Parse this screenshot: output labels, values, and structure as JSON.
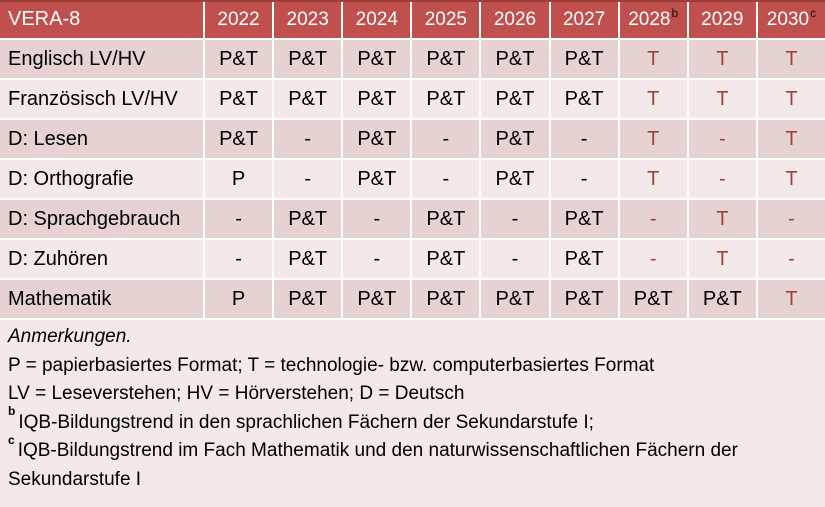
{
  "colors": {
    "header_bg": "#C0504D",
    "header_text": "#FFFFFF",
    "band_dark": "#E6D2D1",
    "band_light": "#F2E9E8",
    "red_text": "#A0413D",
    "dark_text": "#000000",
    "grid_line": "#FFFFFF",
    "top_border": "#9E3E3B"
  },
  "table": {
    "corner_label": "VERA-8",
    "years": [
      {
        "label": "2022",
        "sup": ""
      },
      {
        "label": "2023",
        "sup": ""
      },
      {
        "label": "2024",
        "sup": ""
      },
      {
        "label": "2025",
        "sup": ""
      },
      {
        "label": "2026",
        "sup": ""
      },
      {
        "label": "2027",
        "sup": ""
      },
      {
        "label": "2028",
        "sup": "b"
      },
      {
        "label": "2029",
        "sup": ""
      },
      {
        "label": "2030",
        "sup": "c"
      }
    ],
    "rows": [
      {
        "label": "Englisch LV/HV",
        "cells": [
          {
            "text": "P&T",
            "red": false
          },
          {
            "text": "P&T",
            "red": false
          },
          {
            "text": "P&T",
            "red": false
          },
          {
            "text": "P&T",
            "red": false
          },
          {
            "text": "P&T",
            "red": false
          },
          {
            "text": "P&T",
            "red": false
          },
          {
            "text": "T",
            "red": true
          },
          {
            "text": "T",
            "red": true
          },
          {
            "text": "T",
            "red": true
          }
        ]
      },
      {
        "label": "Französisch LV/HV",
        "cells": [
          {
            "text": "P&T",
            "red": false
          },
          {
            "text": "P&T",
            "red": false
          },
          {
            "text": "P&T",
            "red": false
          },
          {
            "text": "P&T",
            "red": false
          },
          {
            "text": "P&T",
            "red": false
          },
          {
            "text": "P&T",
            "red": false
          },
          {
            "text": "T",
            "red": true
          },
          {
            "text": "T",
            "red": true
          },
          {
            "text": "T",
            "red": true
          }
        ]
      },
      {
        "label": "D: Lesen",
        "cells": [
          {
            "text": "P&T",
            "red": false
          },
          {
            "text": "-",
            "red": false
          },
          {
            "text": "P&T",
            "red": false
          },
          {
            "text": "-",
            "red": false
          },
          {
            "text": "P&T",
            "red": false
          },
          {
            "text": "-",
            "red": false
          },
          {
            "text": "T",
            "red": true
          },
          {
            "text": "-",
            "red": true
          },
          {
            "text": "T",
            "red": true
          }
        ]
      },
      {
        "label": "D: Orthografie",
        "cells": [
          {
            "text": "P",
            "red": false
          },
          {
            "text": "-",
            "red": false
          },
          {
            "text": "P&T",
            "red": false
          },
          {
            "text": "-",
            "red": false
          },
          {
            "text": "P&T",
            "red": false
          },
          {
            "text": "-",
            "red": false
          },
          {
            "text": "T",
            "red": true
          },
          {
            "text": "-",
            "red": true
          },
          {
            "text": "T",
            "red": true
          }
        ]
      },
      {
        "label": "D: Sprachgebrauch",
        "cells": [
          {
            "text": "-",
            "red": false
          },
          {
            "text": "P&T",
            "red": false
          },
          {
            "text": "-",
            "red": false
          },
          {
            "text": "P&T",
            "red": false
          },
          {
            "text": "-",
            "red": false
          },
          {
            "text": "P&T",
            "red": false
          },
          {
            "text": "-",
            "red": true
          },
          {
            "text": "T",
            "red": true
          },
          {
            "text": "-",
            "red": true
          }
        ]
      },
      {
        "label": "D: Zuhören",
        "cells": [
          {
            "text": "-",
            "red": false
          },
          {
            "text": "P&T",
            "red": false
          },
          {
            "text": "-",
            "red": false
          },
          {
            "text": "P&T",
            "red": false
          },
          {
            "text": "-",
            "red": false
          },
          {
            "text": "P&T",
            "red": false
          },
          {
            "text": "-",
            "red": true
          },
          {
            "text": "T",
            "red": true
          },
          {
            "text": "-",
            "red": true
          }
        ]
      },
      {
        "label": "Mathematik",
        "cells": [
          {
            "text": "P",
            "red": false
          },
          {
            "text": "P&T",
            "red": false
          },
          {
            "text": "P&T",
            "red": false
          },
          {
            "text": "P&T",
            "red": false
          },
          {
            "text": "P&T",
            "red": false
          },
          {
            "text": "P&T",
            "red": false
          },
          {
            "text": "P&T",
            "red": false
          },
          {
            "text": "P&T",
            "red": false
          },
          {
            "text": "T",
            "red": true
          }
        ]
      }
    ]
  },
  "notes": {
    "lines": [
      {
        "marker": "",
        "text": "Anmerkungen.",
        "italic": true
      },
      {
        "marker": "",
        "text": "P = papierbasiertes Format; T = technologie- bzw. computerbasiertes Format",
        "italic": false
      },
      {
        "marker": "",
        "text": "LV = Leseverstehen; HV = Hörverstehen; D = Deutsch",
        "italic": false
      },
      {
        "marker": "b",
        "text": "IQB-Bildungstrend in den sprachlichen Fächern der Sekundarstufe I;",
        "italic": false
      },
      {
        "marker": "c",
        "text": "IQB-Bildungstrend im Fach Mathematik und den naturwissenschaftlichen Fächern der Sekundarstufe I",
        "italic": false
      }
    ]
  }
}
